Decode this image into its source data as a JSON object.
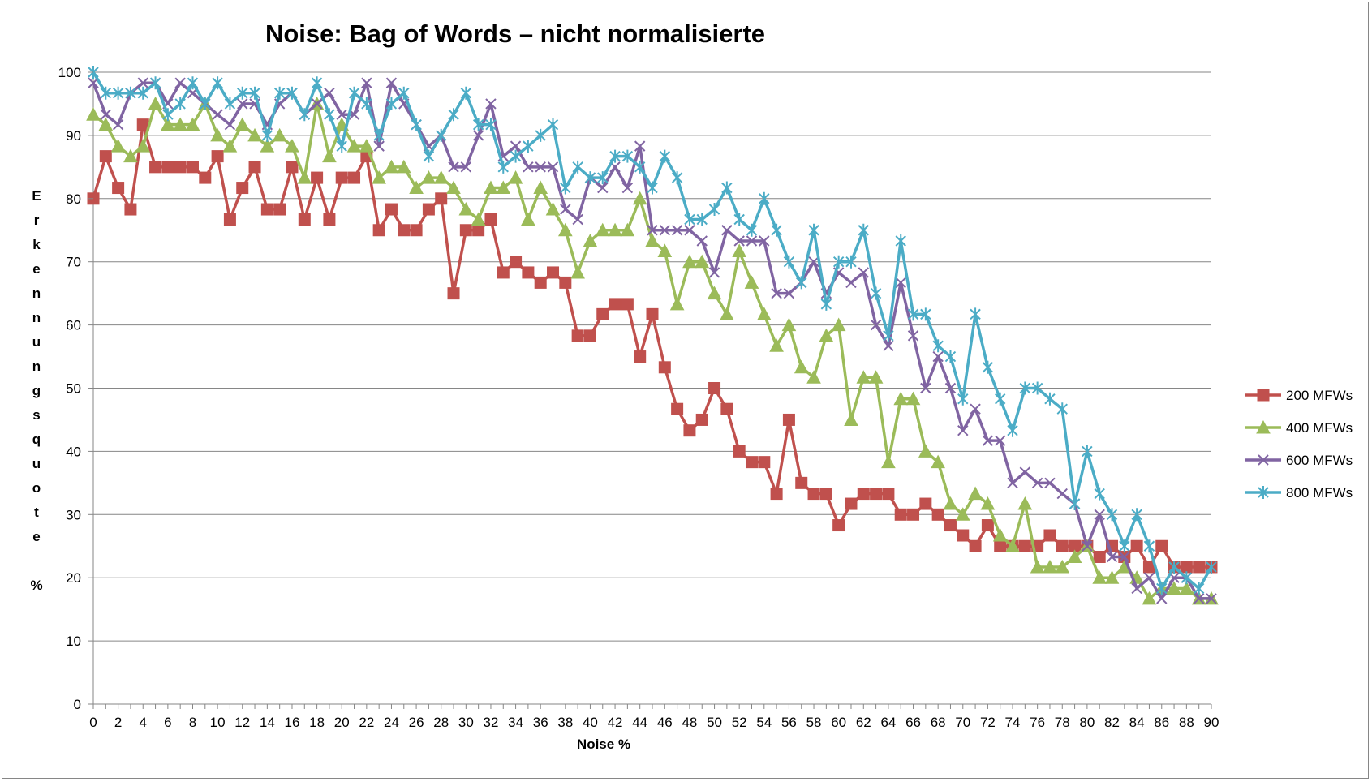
{
  "chart_data": {
    "type": "line",
    "title": "Noise: Bag of Words – nicht normalisierte",
    "xlabel": "Noise %",
    "ylabel": "Erkennungsquote %",
    "ylim": [
      0,
      100
    ],
    "yticks": [
      0,
      10,
      20,
      30,
      40,
      50,
      60,
      70,
      80,
      90,
      100
    ],
    "xlim": [
      0,
      90
    ],
    "xtick_labels": [
      0,
      2,
      4,
      6,
      8,
      10,
      12,
      14,
      16,
      18,
      20,
      22,
      24,
      26,
      28,
      30,
      32,
      34,
      36,
      38,
      40,
      42,
      44,
      46,
      48,
      50,
      52,
      54,
      56,
      58,
      60,
      62,
      64,
      66,
      68,
      70,
      72,
      74,
      76,
      78,
      80,
      82,
      84,
      86,
      88,
      90
    ],
    "grid": "horizontal",
    "legend_position": "right",
    "x": [
      0,
      1,
      2,
      3,
      4,
      5,
      6,
      7,
      8,
      9,
      10,
      11,
      12,
      13,
      14,
      15,
      16,
      17,
      18,
      19,
      20,
      21,
      22,
      23,
      24,
      25,
      26,
      27,
      28,
      29,
      30,
      31,
      32,
      33,
      34,
      35,
      36,
      37,
      38,
      39,
      40,
      41,
      42,
      43,
      44,
      45,
      46,
      47,
      48,
      49,
      50,
      51,
      52,
      53,
      54,
      55,
      56,
      57,
      58,
      59,
      60,
      61,
      62,
      63,
      64,
      65,
      66,
      67,
      68,
      69,
      70,
      71,
      72,
      73,
      74,
      75,
      76,
      77,
      78,
      79,
      80,
      81,
      82,
      83,
      84,
      85,
      86,
      87,
      88,
      89,
      90
    ],
    "series": [
      {
        "name": "200 MFWs",
        "color": "#c0504d",
        "marker": "square",
        "values": [
          80,
          86.7,
          81.7,
          78.3,
          91.7,
          85,
          85,
          85,
          85,
          83.3,
          86.7,
          76.7,
          81.7,
          85,
          78.3,
          78.3,
          85,
          76.7,
          83.3,
          76.7,
          83.3,
          83.3,
          86.7,
          75,
          78.3,
          75,
          75,
          78.3,
          80,
          65,
          75,
          75,
          76.7,
          68.3,
          70,
          68.3,
          66.7,
          68.3,
          66.7,
          58.3,
          58.3,
          61.7,
          63.3,
          63.3,
          55,
          61.7,
          53.3,
          46.7,
          43.3,
          45,
          50,
          46.7,
          40,
          38.3,
          38.3,
          33.3,
          45,
          35,
          33.3,
          33.3,
          28.3,
          31.7,
          33.3,
          33.3,
          33.3,
          30,
          30,
          31.7,
          30,
          28.3,
          26.7,
          25,
          28.3,
          25,
          25,
          25,
          25,
          26.7,
          25,
          25,
          25,
          23.3,
          25,
          23.3,
          25,
          21.7,
          25,
          21.7,
          21.7,
          21.7,
          21.7
        ]
      },
      {
        "name": "400 MFWs",
        "color": "#9bbb59",
        "marker": "triangle",
        "values": [
          93.3,
          91.7,
          88.3,
          86.7,
          88.3,
          95,
          91.7,
          91.7,
          91.7,
          95,
          90,
          88.3,
          91.7,
          90,
          88.3,
          90,
          88.3,
          83.3,
          95,
          86.7,
          91.7,
          88.3,
          88.3,
          83.3,
          85,
          85,
          81.7,
          83.3,
          83.3,
          81.7,
          78.3,
          76.7,
          81.7,
          81.7,
          83.3,
          76.7,
          81.7,
          78.3,
          75,
          68.3,
          73.3,
          75,
          75,
          75,
          80,
          73.3,
          71.7,
          63.3,
          70,
          70,
          65,
          61.7,
          71.7,
          66.7,
          61.7,
          56.7,
          60,
          53.3,
          51.7,
          58.3,
          60,
          45,
          51.7,
          51.7,
          38.3,
          48.3,
          48.3,
          40,
          38.3,
          31.7,
          30,
          33.3,
          31.7,
          26.7,
          25,
          31.7,
          21.7,
          21.7,
          21.7,
          23.3,
          25,
          20,
          20,
          21.7,
          20,
          16.7,
          18.3,
          18.3,
          18.3,
          16.7,
          16.7
        ]
      },
      {
        "name": "600 MFWs",
        "color": "#8064a2",
        "marker": "x",
        "values": [
          98.3,
          93.3,
          91.7,
          96.7,
          98.3,
          98.3,
          95,
          98.3,
          96.7,
          95,
          93.3,
          91.7,
          95,
          95,
          91.7,
          95,
          96.7,
          93.3,
          95,
          96.7,
          93.3,
          93.3,
          98.3,
          88.3,
          98.3,
          95,
          91.7,
          88.3,
          90,
          85,
          85,
          90,
          95,
          86.7,
          88.3,
          85,
          85,
          85,
          78.3,
          76.7,
          83.3,
          81.7,
          85,
          81.7,
          88.3,
          75,
          75,
          75,
          75,
          73.3,
          68.3,
          75,
          73.3,
          73.3,
          73.3,
          65,
          65,
          66.7,
          70,
          65,
          68.3,
          66.7,
          68.3,
          60,
          56.7,
          66.7,
          58.3,
          50,
          55,
          50,
          43.3,
          46.7,
          41.7,
          41.7,
          35,
          36.7,
          35,
          35,
          33.3,
          31.7,
          25,
          30,
          23.3,
          23.3,
          18.3,
          20,
          16.7,
          20,
          20,
          16.7,
          16.7
        ]
      },
      {
        "name": "800 MFWs",
        "color": "#4bacc6",
        "marker": "asterisk",
        "values": [
          100,
          96.7,
          96.7,
          96.7,
          96.7,
          98.3,
          93.3,
          95,
          98.3,
          95,
          98.3,
          95,
          96.7,
          96.7,
          90,
          96.7,
          96.7,
          93.3,
          98.3,
          93.3,
          88.3,
          96.7,
          95,
          90,
          95,
          96.7,
          91.7,
          86.7,
          90,
          93.3,
          96.7,
          91.7,
          91.7,
          85,
          86.7,
          88.3,
          90,
          91.7,
          81.7,
          85,
          83.3,
          83.3,
          86.7,
          86.7,
          85,
          81.7,
          86.7,
          83.3,
          76.7,
          76.7,
          78.3,
          81.7,
          76.7,
          75,
          80,
          75,
          70,
          66.7,
          75,
          63.3,
          70,
          70,
          75,
          65,
          58.3,
          73.3,
          61.7,
          61.7,
          56.7,
          55,
          48.3,
          61.7,
          53.3,
          48.3,
          43.3,
          50,
          50,
          48.3,
          46.7,
          31.7,
          40,
          33.3,
          30,
          25,
          30,
          25,
          18.3,
          21.7,
          20,
          18.3,
          21.7
        ]
      }
    ]
  }
}
